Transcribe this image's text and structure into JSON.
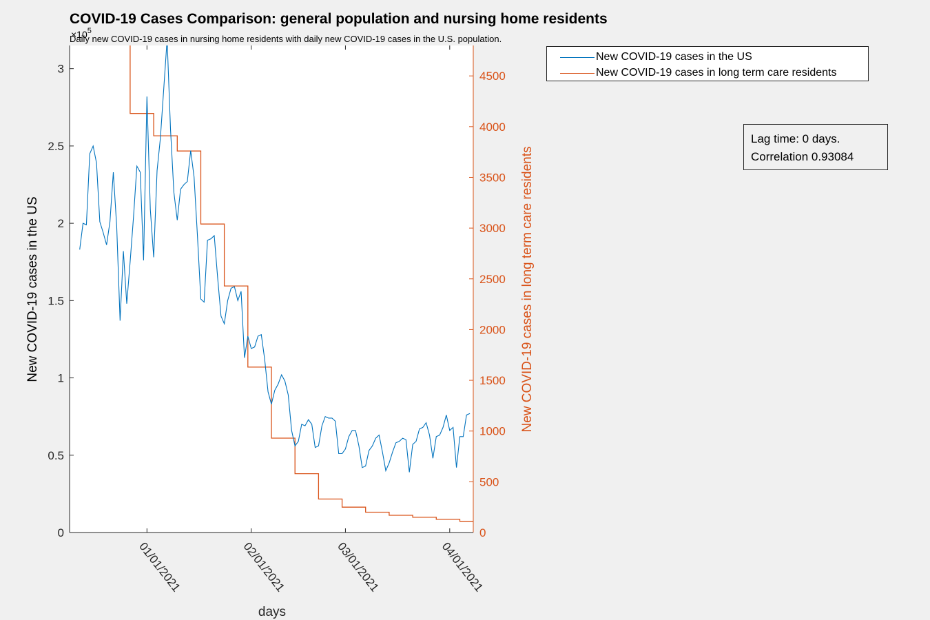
{
  "title": "COVID-19 Cases Comparison: general population and nursing home residents",
  "subtitle": "Daily new COVID-19 cases in nursing home residents with daily new COVID-19 cases in the U.S. population.",
  "annotation": {
    "line1": "Lag time: 0 days.",
    "line2": "Correlation 0.93084"
  },
  "colors": {
    "us": "#0072bd",
    "ltc": "#d95319",
    "axis": "#262626"
  },
  "chart_data": {
    "type": "line",
    "xlabel": "days",
    "ylabel_left": "New COVID-19 cases in the US",
    "ylabel_right": "New COVID-19 cases in long term care residents",
    "left_exponent_base": "×10",
    "left_exponent_power": "5",
    "x_tick_labels": [
      "01/01/2021",
      "02/01/2021",
      "03/01/2021",
      "04/01/2021"
    ],
    "left_ticks": [
      "0",
      "0.5",
      "1",
      "1.5",
      "2",
      "2.5",
      "3"
    ],
    "right_ticks": [
      "0",
      "500",
      "1000",
      "1500",
      "2000",
      "2500",
      "3000",
      "3500",
      "4000",
      "4500"
    ],
    "ylim_left": [
      0,
      315000
    ],
    "ylim_right": [
      0,
      4800
    ],
    "series": [
      {
        "name": "New COVID-19 cases in the US",
        "axis": "left",
        "start_date": "2020-12-12",
        "values": [
          183000,
          200000,
          199000,
          245000,
          250000,
          239000,
          201000,
          194000,
          186000,
          201000,
          233000,
          198000,
          137000,
          182000,
          148000,
          175000,
          204000,
          237000,
          233000,
          176000,
          282000,
          209000,
          178000,
          234000,
          255000,
          287000,
          319000,
          261000,
          220000,
          202000,
          222000,
          225000,
          227000,
          247000,
          230000,
          192000,
          151000,
          149000,
          189000,
          190000,
          192000,
          165000,
          140000,
          135000,
          150000,
          158000,
          159000,
          150000,
          156000,
          113000,
          127000,
          119000,
          120000,
          127000,
          128000,
          112000,
          91000,
          83000,
          92000,
          96000,
          102000,
          98000,
          89000,
          66000,
          56000,
          59000,
          70000,
          69000,
          73000,
          70000,
          55000,
          56000,
          69000,
          75000,
          74000,
          74000,
          72000,
          51000,
          51000,
          54000,
          62000,
          66000,
          66000,
          56000,
          42000,
          43000,
          53000,
          56000,
          61000,
          63000,
          52000,
          40000,
          45000,
          52000,
          58000,
          59000,
          61000,
          60000,
          39000,
          57000,
          59000,
          67000,
          68000,
          71000,
          63000,
          48000,
          62000,
          63000,
          68000,
          76000,
          66000,
          68000,
          42000,
          62000,
          62000,
          76000,
          77000
        ]
      },
      {
        "name": "New COVID-19 cases in long term care residents",
        "axis": "right",
        "weekly": [
          {
            "date": "2020-12-06",
            "value": 4830
          },
          {
            "date": "2020-12-13",
            "value": 4830
          },
          {
            "date": "2020-12-20",
            "value": 4830
          },
          {
            "date": "2020-12-27",
            "value": 4130
          },
          {
            "date": "2021-01-03",
            "value": 3910
          },
          {
            "date": "2021-01-10",
            "value": 3760
          },
          {
            "date": "2021-01-17",
            "value": 3040
          },
          {
            "date": "2021-01-24",
            "value": 2430
          },
          {
            "date": "2021-01-31",
            "value": 1630
          },
          {
            "date": "2021-02-07",
            "value": 930
          },
          {
            "date": "2021-02-14",
            "value": 580
          },
          {
            "date": "2021-02-21",
            "value": 330
          },
          {
            "date": "2021-02-28",
            "value": 250
          },
          {
            "date": "2021-03-07",
            "value": 200
          },
          {
            "date": "2021-03-14",
            "value": 170
          },
          {
            "date": "2021-03-21",
            "value": 150
          },
          {
            "date": "2021-03-28",
            "value": 130
          },
          {
            "date": "2021-04-04",
            "value": 110
          }
        ],
        "end_date": "2021-04-08"
      }
    ]
  }
}
